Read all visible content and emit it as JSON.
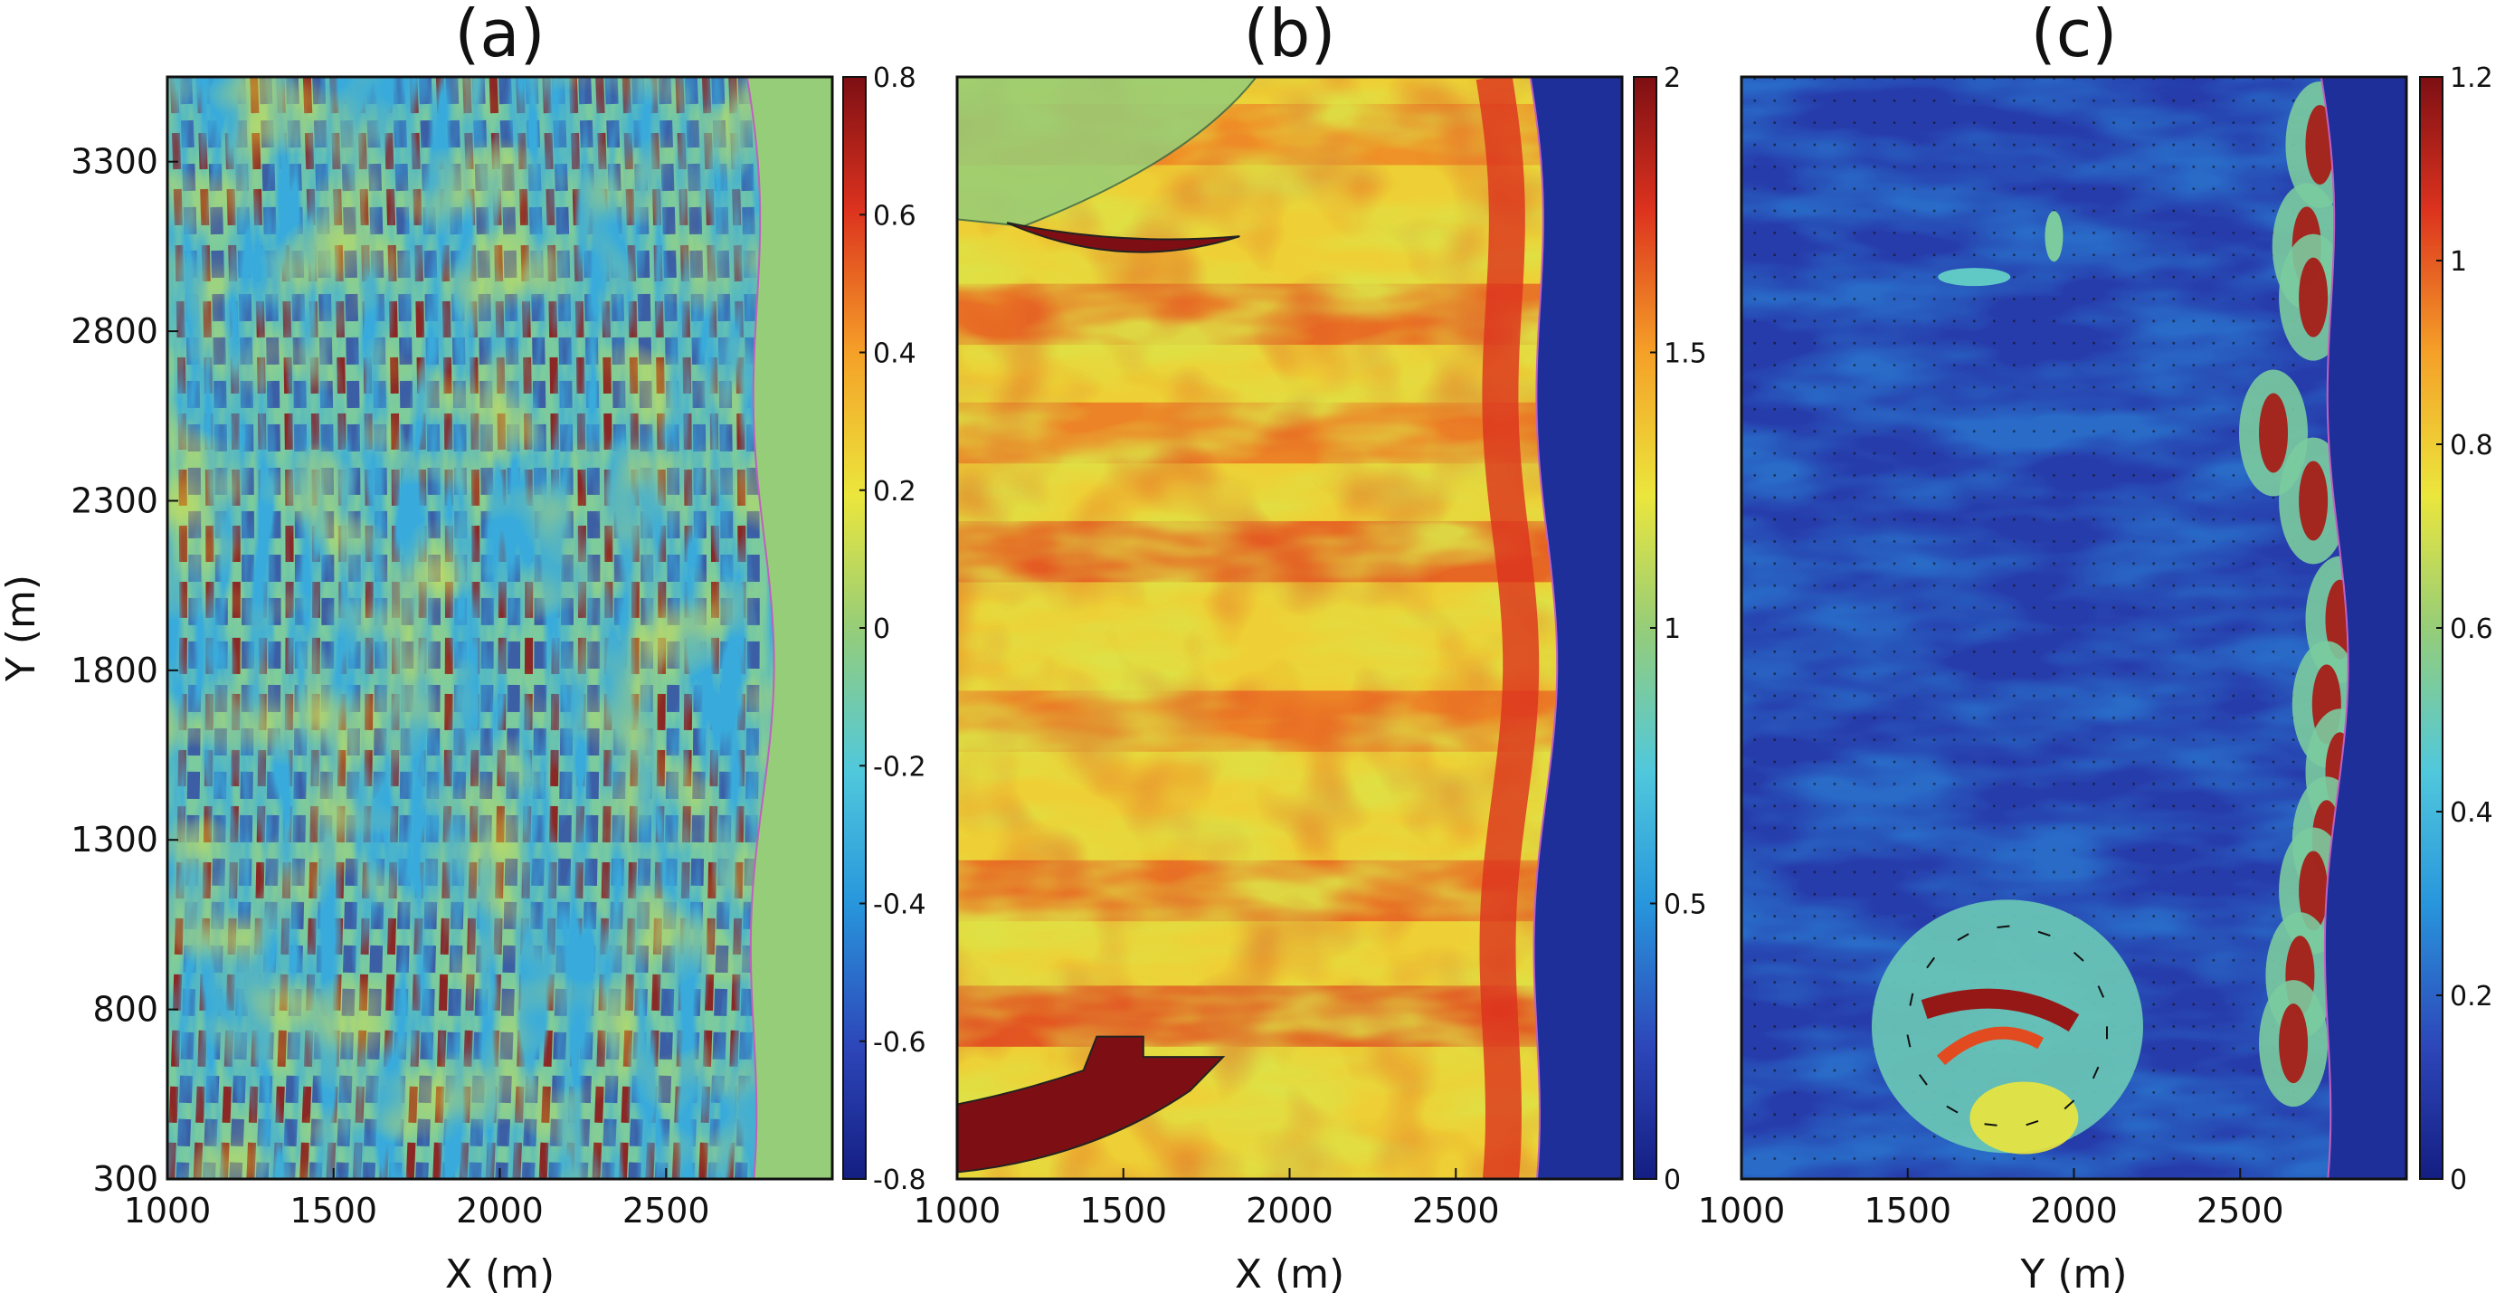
{
  "chart_data": [
    {
      "type": "heatmap",
      "title": "(a)",
      "xlabel": "X (m)",
      "ylabel": "Y (m)",
      "xlim": [
        1000,
        3000
      ],
      "ylim": [
        300,
        3550
      ],
      "x_ticks": [
        "1000",
        "1500",
        "2000",
        "2500"
      ],
      "y_ticks": [
        "300",
        "800",
        "1300",
        "1800",
        "2300",
        "2800",
        "3300"
      ],
      "colorbar": {
        "range": [
          -0.8,
          0.8
        ],
        "ticks": [
          "0.8",
          "0.6",
          "0.4",
          "0.2",
          "0",
          "-0.2",
          "-0.4",
          "-0.6",
          "-0.8"
        ]
      },
      "land_value": 0,
      "shoreline_x_approx": 2780,
      "wave_crest_spacing_m": 80
    },
    {
      "type": "heatmap",
      "title": "(b)",
      "xlabel": "X (m)",
      "ylabel": "",
      "xlim": [
        1000,
        3000
      ],
      "ylim": [
        300,
        3550
      ],
      "x_ticks": [
        "1000",
        "1500",
        "2000",
        "2500"
      ],
      "colorbar": {
        "range": [
          0,
          2
        ],
        "ticks": [
          "2",
          "1.5",
          "1",
          "0.5",
          "0"
        ]
      },
      "land_value": 0,
      "shoreline_x_approx": 2760,
      "high_patches": [
        {
          "x_range": [
            1150,
            1850
          ],
          "y_approx": 3080,
          "value": 2
        },
        {
          "x_range": [
            1000,
            1800
          ],
          "y_approx": 500,
          "value": 2
        }
      ],
      "low_patch": {
        "x_range": [
          1000,
          1900
        ],
        "y_range": [
          3050,
          3550
        ],
        "value": 0.9
      }
    },
    {
      "type": "heatmap",
      "title": "(c)",
      "xlabel": "Y (m)",
      "ylabel": "",
      "xlim": [
        1000,
        3000
      ],
      "ylim": [
        300,
        3550
      ],
      "x_ticks": [
        "1000",
        "1500",
        "2000",
        "2500"
      ],
      "colorbar": {
        "range": [
          0,
          1.2
        ],
        "ticks": [
          "1.2",
          "1",
          "0.8",
          "0.6",
          "0.4",
          "0.2",
          "0"
        ]
      },
      "land_value": 0,
      "shoreline_x_approx": 2780,
      "eddy_center_approx": {
        "x": 1800,
        "y": 750
      },
      "vector_field": true
    }
  ]
}
